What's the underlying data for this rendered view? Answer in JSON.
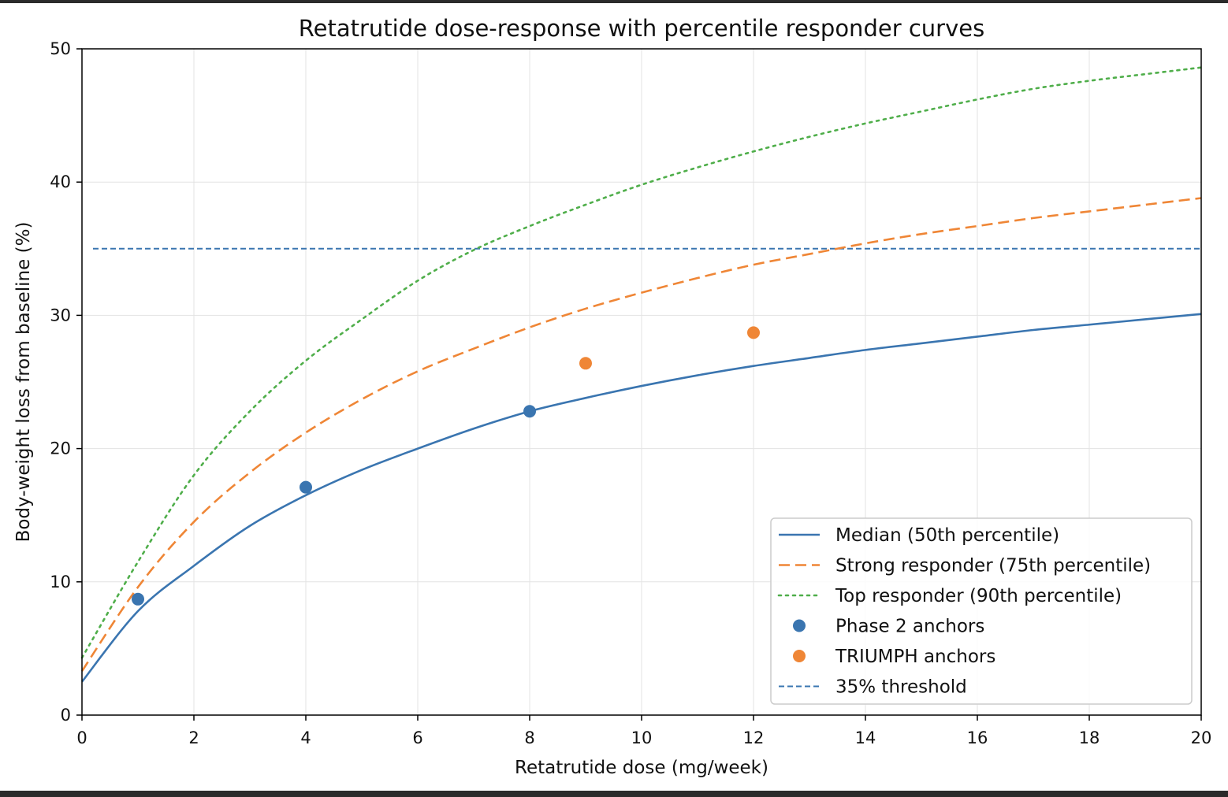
{
  "chart_data": {
    "type": "line",
    "title": "Retatrutide dose-response with percentile responder curves",
    "xlabel": "Retatrutide dose (mg/week)",
    "ylabel": "Body-weight loss from baseline (%)",
    "xlim": [
      0,
      20
    ],
    "ylim": [
      0,
      50
    ],
    "xticks": [
      "0",
      "2",
      "4",
      "6",
      "8",
      "10",
      "12",
      "14",
      "16",
      "18",
      "20"
    ],
    "yticks": [
      "0",
      "10",
      "20",
      "30",
      "40",
      "50"
    ],
    "grid": true,
    "legend_position": "lower-right",
    "series": [
      {
        "name": "Median (50th percentile)",
        "style": "solid",
        "color": "#3a75b0",
        "x": [
          0,
          1,
          2,
          3,
          4,
          5,
          6,
          7,
          8,
          9,
          10,
          11,
          12,
          13,
          14,
          15,
          16,
          17,
          18,
          19,
          20
        ],
        "y": [
          2.5,
          7.8,
          11.2,
          14.2,
          16.5,
          18.4,
          20.0,
          21.5,
          22.8,
          23.8,
          24.7,
          25.5,
          26.2,
          26.8,
          27.4,
          27.9,
          28.4,
          28.9,
          29.3,
          29.7,
          30.1
        ]
      },
      {
        "name": "Strong responder (75th percentile)",
        "style": "dashed",
        "color": "#ef8636",
        "x": [
          0,
          1,
          2,
          3,
          4,
          5,
          6,
          7,
          8,
          9,
          10,
          11,
          12,
          13,
          14,
          15,
          16,
          17,
          18,
          19,
          20
        ],
        "y": [
          3.3,
          9.6,
          14.5,
          18.2,
          21.2,
          23.7,
          25.8,
          27.5,
          29.1,
          30.5,
          31.7,
          32.8,
          33.8,
          34.6,
          35.4,
          36.1,
          36.7,
          37.3,
          37.8,
          38.3,
          38.8
        ]
      },
      {
        "name": "Top responder (90th percentile)",
        "style": "dotted",
        "color": "#4fae4a",
        "x": [
          0,
          1,
          2,
          3,
          4,
          5,
          6,
          7,
          8,
          9,
          10,
          11,
          12,
          13,
          14,
          15,
          16,
          17,
          18,
          19,
          20
        ],
        "y": [
          4.3,
          11.5,
          18.0,
          22.8,
          26.6,
          29.7,
          32.6,
          34.9,
          36.7,
          38.3,
          39.8,
          41.1,
          42.3,
          43.4,
          44.4,
          45.3,
          46.2,
          47.0,
          47.6,
          48.1,
          48.6
        ]
      }
    ],
    "scatter": [
      {
        "name": "Phase 2 anchors",
        "color": "#3a75b0",
        "points": [
          {
            "x": 1,
            "y": 8.7
          },
          {
            "x": 4,
            "y": 17.1
          },
          {
            "x": 8,
            "y": 22.8
          }
        ]
      },
      {
        "name": "TRIUMPH anchors",
        "color": "#ef8636",
        "points": [
          {
            "x": 9,
            "y": 26.4
          },
          {
            "x": 12,
            "y": 28.7
          }
        ]
      }
    ],
    "threshold": {
      "name": "35% threshold",
      "y": 35,
      "style": "dashed",
      "color": "#3a75b0"
    }
  }
}
